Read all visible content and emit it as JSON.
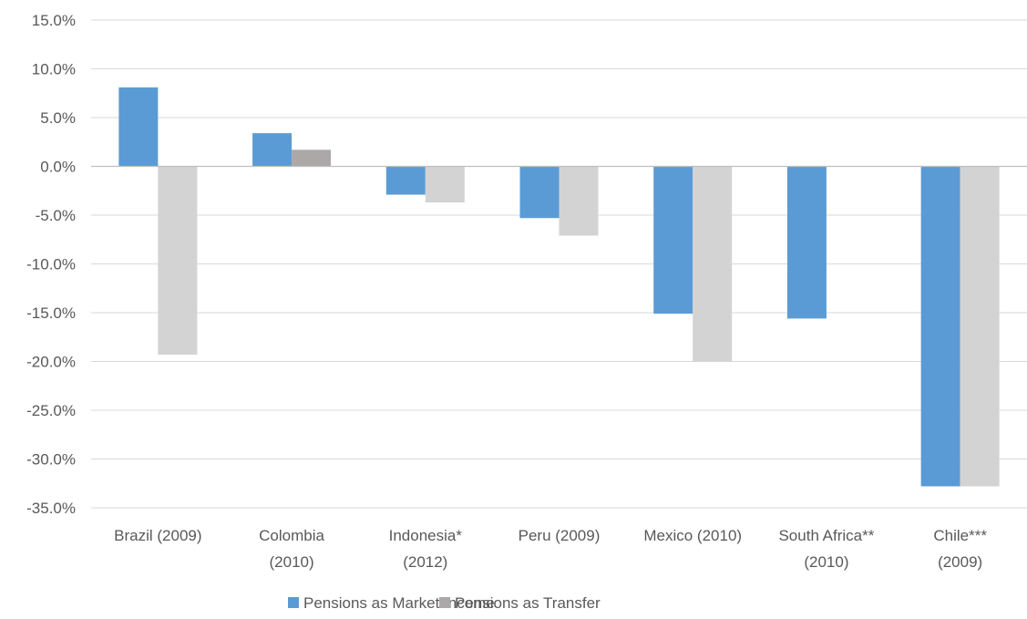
{
  "chart_data": {
    "type": "bar",
    "categories": [
      [
        "Brazil (2009)"
      ],
      [
        "Colombia",
        "(2010)"
      ],
      [
        "Indonesia*",
        "(2012)"
      ],
      [
        "Peru (2009)"
      ],
      [
        "Mexico (2010)"
      ],
      [
        "South Africa**",
        "(2010)"
      ],
      [
        "Chile***",
        "(2009)"
      ]
    ],
    "series": [
      {
        "name": "Pensions as Market Income",
        "values": [
          8.1,
          3.4,
          -2.9,
          -5.3,
          -15.1,
          -15.6,
          -32.8
        ],
        "colors": [
          "#5B9BD5",
          "#5B9BD5",
          "#5B9BD5",
          "#5B9BD5",
          "#5B9BD5",
          "#5B9BD5",
          "#5B9BD5"
        ]
      },
      {
        "name": "Pensions as Transfer",
        "values": [
          -19.3,
          1.7,
          -3.7,
          -7.1,
          -20.0,
          null,
          -32.8
        ],
        "colors": [
          "#D3D3D3",
          "#ADA8A8",
          "#D3D3D3",
          "#D3D3D3",
          "#D3D3D3",
          "#D3D3D3",
          "#D3D3D3"
        ]
      }
    ],
    "ylim": [
      -35,
      15
    ],
    "yticks": [
      15,
      10,
      5,
      0,
      -5,
      -10,
      -15,
      -20,
      -25,
      -30,
      -35
    ],
    "ytick_labels": [
      "15.0%",
      "10.0%",
      "5.0%",
      "0.0%",
      "-5.0%",
      "-10.0%",
      "-15.0%",
      "-20.0%",
      "-25.0%",
      "-30.0%",
      "-35.0%"
    ],
    "grid": true,
    "legend": {
      "position": "bottom",
      "items": [
        {
          "label": "Pensions as Market Income",
          "color": "#5B9BD5"
        },
        {
          "label": "Pensions as Transfer",
          "color": "#ADA8A8"
        }
      ]
    },
    "title": "",
    "xlabel": "",
    "ylabel": ""
  }
}
